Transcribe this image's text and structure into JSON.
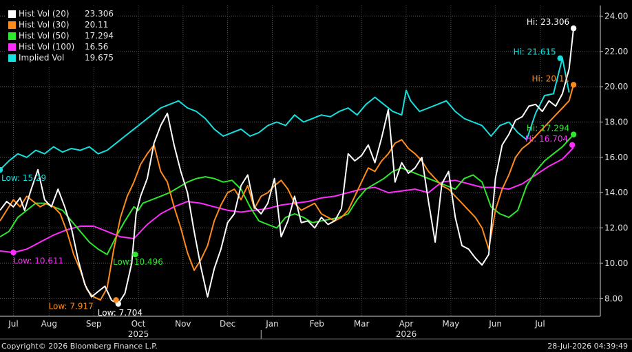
{
  "footer": {
    "copyright": "Copyright© 2026 Bloomberg Finance L.P.",
    "timestamp": "28-Jul-2026 04:39:49"
  },
  "chart_data": {
    "type": "line",
    "grid": true,
    "legend_position": "top-left",
    "y_axis_position": "right",
    "ylim": [
      7.0,
      24.6
    ],
    "y_ticks": [
      8,
      10,
      12,
      14,
      16,
      18,
      20,
      22,
      24
    ],
    "y_tick_labels": [
      "8.00",
      "10.00",
      "12.00",
      "14.00",
      "16.00",
      "18.00",
      "20.00",
      "22.00",
      "24.00"
    ],
    "x_ticks": [
      {
        "label": "Jul",
        "x": 0.3
      },
      {
        "label": "Aug",
        "x": 1.1
      },
      {
        "label": "Sep",
        "x": 2.1
      },
      {
        "label": "Oct",
        "x": 3.1
      },
      {
        "label": "Nov",
        "x": 4.1
      },
      {
        "label": "Dec",
        "x": 5.1
      },
      {
        "label": "Jan",
        "x": 6.1
      },
      {
        "label": "Feb",
        "x": 7.1
      },
      {
        "label": "Mar",
        "x": 8.1
      },
      {
        "label": "Apr",
        "x": 9.1
      },
      {
        "label": "May",
        "x": 10.1
      },
      {
        "label": "Jun",
        "x": 11.1
      },
      {
        "label": "Jul",
        "x": 12.1
      }
    ],
    "year_labels": [
      {
        "label": "2025",
        "x": 3.1
      },
      {
        "label": "2026",
        "x": 9.1
      }
    ],
    "year_separator_x": 5.85,
    "xlim": [
      0,
      13.45
    ],
    "series": [
      {
        "name": "Hist Vol (20)",
        "color": "#ffffff",
        "last": "23.306",
        "x": [
          0,
          0.15,
          0.3,
          0.45,
          0.55,
          0.7,
          0.85,
          1.0,
          1.15,
          1.3,
          1.45,
          1.6,
          1.75,
          1.9,
          2.05,
          2.2,
          2.35,
          2.5,
          2.65,
          2.8,
          2.95,
          3.05,
          3.15,
          3.3,
          3.45,
          3.6,
          3.75,
          3.9,
          4.05,
          4.2,
          4.35,
          4.5,
          4.65,
          4.8,
          4.95,
          5.1,
          5.25,
          5.4,
          5.55,
          5.7,
          5.85,
          6.0,
          6.15,
          6.3,
          6.45,
          6.6,
          6.75,
          6.9,
          7.05,
          7.2,
          7.35,
          7.5,
          7.65,
          7.8,
          7.95,
          8.1,
          8.25,
          8.4,
          8.55,
          8.7,
          8.85,
          9.0,
          9.15,
          9.3,
          9.45,
          9.6,
          9.75,
          9.9,
          10.05,
          10.2,
          10.35,
          10.5,
          10.65,
          10.8,
          10.95,
          11.1,
          11.25,
          11.4,
          11.55,
          11.7,
          11.85,
          12.0,
          12.15,
          12.3,
          12.45,
          12.6,
          12.75,
          12.85
        ],
        "y": [
          13.0,
          13.5,
          13.2,
          13.7,
          13.0,
          14.2,
          15.3,
          13.6,
          13.2,
          14.2,
          13.2,
          12.0,
          10.2,
          8.8,
          8.1,
          8.4,
          8.7,
          7.9,
          7.704,
          8.3,
          10.0,
          12.8,
          13.8,
          14.8,
          16.8,
          17.8,
          18.5,
          16.7,
          15.2,
          14.0,
          11.8,
          9.8,
          8.1,
          9.7,
          10.8,
          12.3,
          12.8,
          14.4,
          15.0,
          13.2,
          12.8,
          13.4,
          14.8,
          11.5,
          12.4,
          13.8,
          12.3,
          12.4,
          12.0,
          12.6,
          12.2,
          12.4,
          13.1,
          16.2,
          15.8,
          16.1,
          16.7,
          15.7,
          17.1,
          18.7,
          14.6,
          15.7,
          15.1,
          15.4,
          16.0,
          13.5,
          11.2,
          14.5,
          15.2,
          12.6,
          11.0,
          10.8,
          10.3,
          9.9,
          10.5,
          14.8,
          16.7,
          17.3,
          18.1,
          18.3,
          18.9,
          19.0,
          18.6,
          19.2,
          18.9,
          19.6,
          21.0,
          23.306
        ]
      },
      {
        "name": "Hist Vol (30)",
        "color": "#ff8c1a",
        "last": "20.11",
        "x": [
          0,
          0.15,
          0.3,
          0.45,
          0.6,
          0.75,
          0.9,
          1.05,
          1.2,
          1.35,
          1.5,
          1.65,
          1.8,
          1.95,
          2.1,
          2.25,
          2.4,
          2.55,
          2.7,
          2.85,
          3.0,
          3.15,
          3.3,
          3.45,
          3.6,
          3.75,
          3.9,
          4.05,
          4.2,
          4.35,
          4.5,
          4.65,
          4.8,
          4.95,
          5.1,
          5.25,
          5.4,
          5.55,
          5.7,
          5.85,
          6.0,
          6.15,
          6.3,
          6.45,
          6.6,
          6.75,
          6.9,
          7.05,
          7.2,
          7.35,
          7.5,
          7.65,
          7.8,
          7.95,
          8.1,
          8.25,
          8.4,
          8.55,
          8.7,
          8.85,
          9.0,
          9.15,
          9.3,
          9.45,
          9.6,
          9.75,
          9.9,
          10.05,
          10.2,
          10.35,
          10.5,
          10.65,
          10.8,
          10.95,
          11.1,
          11.25,
          11.4,
          11.55,
          11.7,
          11.85,
          12.0,
          12.15,
          12.3,
          12.45,
          12.6,
          12.75,
          12.85
        ],
        "y": [
          12.4,
          13.0,
          13.6,
          13.2,
          13.8,
          13.5,
          13.2,
          13.4,
          13.2,
          12.8,
          11.8,
          10.5,
          9.6,
          8.5,
          8.1,
          7.917,
          8.6,
          10.8,
          12.6,
          13.8,
          14.6,
          15.6,
          16.2,
          16.7,
          15.2,
          14.6,
          13.2,
          12.0,
          10.6,
          9.6,
          10.2,
          11.0,
          12.4,
          13.3,
          14.0,
          14.2,
          13.6,
          14.4,
          13.1,
          13.8,
          14.0,
          14.4,
          14.7,
          14.2,
          13.4,
          13.0,
          13.2,
          13.4,
          12.8,
          12.6,
          12.4,
          12.6,
          13.0,
          13.8,
          14.6,
          15.4,
          15.2,
          15.8,
          16.2,
          16.8,
          17.0,
          16.5,
          16.2,
          15.8,
          15.2,
          14.8,
          14.4,
          14.2,
          13.8,
          13.4,
          13.0,
          12.6,
          12.0,
          10.8,
          13.0,
          14.2,
          15.0,
          16.0,
          16.5,
          16.8,
          17.2,
          17.6,
          18.0,
          18.4,
          18.8,
          19.2,
          20.11
        ]
      },
      {
        "name": "Hist Vol (50)",
        "color": "#2ee82e",
        "last": "17.294",
        "x": [
          0,
          0.2,
          0.4,
          0.6,
          0.8,
          1.0,
          1.2,
          1.4,
          1.6,
          1.8,
          2.0,
          2.2,
          2.4,
          2.6,
          2.8,
          3.0,
          3.1,
          3.2,
          3.4,
          3.6,
          3.8,
          4.0,
          4.2,
          4.4,
          4.6,
          4.8,
          5.0,
          5.2,
          5.4,
          5.6,
          5.8,
          6.0,
          6.2,
          6.4,
          6.6,
          6.8,
          7.0,
          7.2,
          7.4,
          7.6,
          7.8,
          8.0,
          8.2,
          8.4,
          8.6,
          8.8,
          9.0,
          9.2,
          9.4,
          9.6,
          9.8,
          10.0,
          10.2,
          10.4,
          10.6,
          10.8,
          11.0,
          11.2,
          11.4,
          11.6,
          11.8,
          12.0,
          12.2,
          12.4,
          12.6,
          12.85
        ],
        "y": [
          11.5,
          11.8,
          12.6,
          13.0,
          13.4,
          13.4,
          13.2,
          13.0,
          12.4,
          11.8,
          11.2,
          10.8,
          10.496,
          11.5,
          12.4,
          13.2,
          13.0,
          13.4,
          13.6,
          13.8,
          14.0,
          14.3,
          14.6,
          14.8,
          14.9,
          14.8,
          14.6,
          14.7,
          14.2,
          13.2,
          12.4,
          12.2,
          12.0,
          12.6,
          12.8,
          12.6,
          12.3,
          12.4,
          12.5,
          12.6,
          12.8,
          13.6,
          14.2,
          14.5,
          14.8,
          15.2,
          15.4,
          15.2,
          15.0,
          14.8,
          14.6,
          14.4,
          14.2,
          14.8,
          15.0,
          14.6,
          13.2,
          12.8,
          12.6,
          13.0,
          14.4,
          15.2,
          15.8,
          16.2,
          16.6,
          17.294
        ]
      },
      {
        "name": "Hist Vol (100)",
        "color": "#ff2bff",
        "last": "16.56",
        "x": [
          0,
          0.3,
          0.6,
          0.9,
          1.2,
          1.5,
          1.8,
          2.1,
          2.4,
          2.7,
          3.0,
          3.3,
          3.6,
          3.9,
          4.2,
          4.5,
          4.8,
          5.1,
          5.4,
          5.7,
          6.0,
          6.3,
          6.6,
          6.9,
          7.2,
          7.5,
          7.8,
          8.1,
          8.4,
          8.7,
          9.0,
          9.3,
          9.6,
          9.9,
          10.2,
          10.5,
          10.8,
          11.1,
          11.4,
          11.7,
          12.0,
          12.3,
          12.6,
          12.85
        ],
        "y": [
          10.7,
          10.611,
          10.8,
          11.2,
          11.6,
          11.9,
          12.1,
          12.1,
          11.8,
          11.5,
          11.4,
          12.2,
          12.8,
          13.2,
          13.5,
          13.4,
          13.2,
          13.0,
          12.9,
          13.0,
          13.1,
          13.3,
          13.4,
          13.5,
          13.7,
          13.8,
          14.0,
          14.2,
          14.3,
          14.0,
          14.1,
          14.2,
          14.0,
          14.6,
          14.7,
          14.5,
          14.3,
          14.3,
          14.2,
          14.5,
          15.0,
          15.5,
          15.9,
          16.56
        ]
      },
      {
        "name": "Implied Vol",
        "color": "#14e0e0",
        "last": "19.675",
        "x": [
          0,
          0.2,
          0.4,
          0.6,
          0.8,
          1.0,
          1.2,
          1.4,
          1.6,
          1.8,
          2.0,
          2.2,
          2.4,
          2.6,
          2.8,
          3.0,
          3.2,
          3.4,
          3.6,
          3.8,
          4.0,
          4.2,
          4.4,
          4.6,
          4.8,
          5.0,
          5.2,
          5.4,
          5.6,
          5.8,
          6.0,
          6.2,
          6.4,
          6.6,
          6.8,
          7.0,
          7.2,
          7.4,
          7.6,
          7.8,
          8.0,
          8.2,
          8.4,
          8.6,
          8.8,
          9.0,
          9.1,
          9.2,
          9.4,
          9.6,
          9.8,
          10.0,
          10.2,
          10.4,
          10.6,
          10.8,
          11.0,
          11.2,
          11.4,
          11.6,
          11.8,
          12.0,
          12.2,
          12.4,
          12.6,
          12.75
        ],
        "y": [
          15.29,
          15.8,
          16.2,
          16.0,
          16.4,
          16.2,
          16.6,
          16.3,
          16.5,
          16.4,
          16.6,
          16.2,
          16.4,
          16.8,
          17.2,
          17.6,
          18.0,
          18.4,
          18.8,
          19.0,
          19.2,
          18.8,
          18.6,
          18.2,
          17.6,
          17.2,
          17.4,
          17.6,
          17.2,
          17.4,
          17.8,
          18.0,
          17.8,
          18.4,
          18.0,
          18.2,
          18.4,
          18.3,
          18.6,
          18.8,
          18.4,
          19.0,
          19.4,
          19.0,
          18.6,
          18.4,
          19.8,
          19.2,
          18.6,
          18.8,
          19.0,
          19.2,
          18.6,
          18.2,
          18.0,
          17.8,
          17.2,
          17.8,
          18.0,
          17.4,
          17.0,
          18.5,
          19.5,
          19.6,
          21.615,
          19.675
        ]
      }
    ],
    "annotations": [
      {
        "series": 0,
        "type": "hi",
        "text": "Hi: 23.306",
        "x": 12.85,
        "y": 23.306
      },
      {
        "series": 0,
        "type": "low",
        "text": "Low: 7.704",
        "x": 2.65,
        "y": 7.704
      },
      {
        "series": 1,
        "type": "hi",
        "text": "Hi: 20.11",
        "x": 12.85,
        "y": 20.11
      },
      {
        "series": 1,
        "type": "low",
        "text": "Low: 7.917",
        "x": 2.6,
        "y": 7.917
      },
      {
        "series": 2,
        "type": "hi",
        "text": "Hi: 17.294",
        "x": 12.85,
        "y": 17.294
      },
      {
        "series": 2,
        "type": "low",
        "text": "Low: 10.496",
        "x": 3.03,
        "y": 10.496
      },
      {
        "series": 3,
        "type": "hi",
        "text": "Hi: 16.704",
        "x": 12.82,
        "y": 16.704
      },
      {
        "series": 3,
        "type": "low",
        "text": "Low: 10.611",
        "x": 0.3,
        "y": 10.611
      },
      {
        "series": 4,
        "type": "hi",
        "text": "Hi: 21.615",
        "x": 12.55,
        "y": 21.615
      },
      {
        "series": 4,
        "type": "low",
        "text": "Low: 15.29",
        "x": 0,
        "y": 15.29
      }
    ]
  }
}
